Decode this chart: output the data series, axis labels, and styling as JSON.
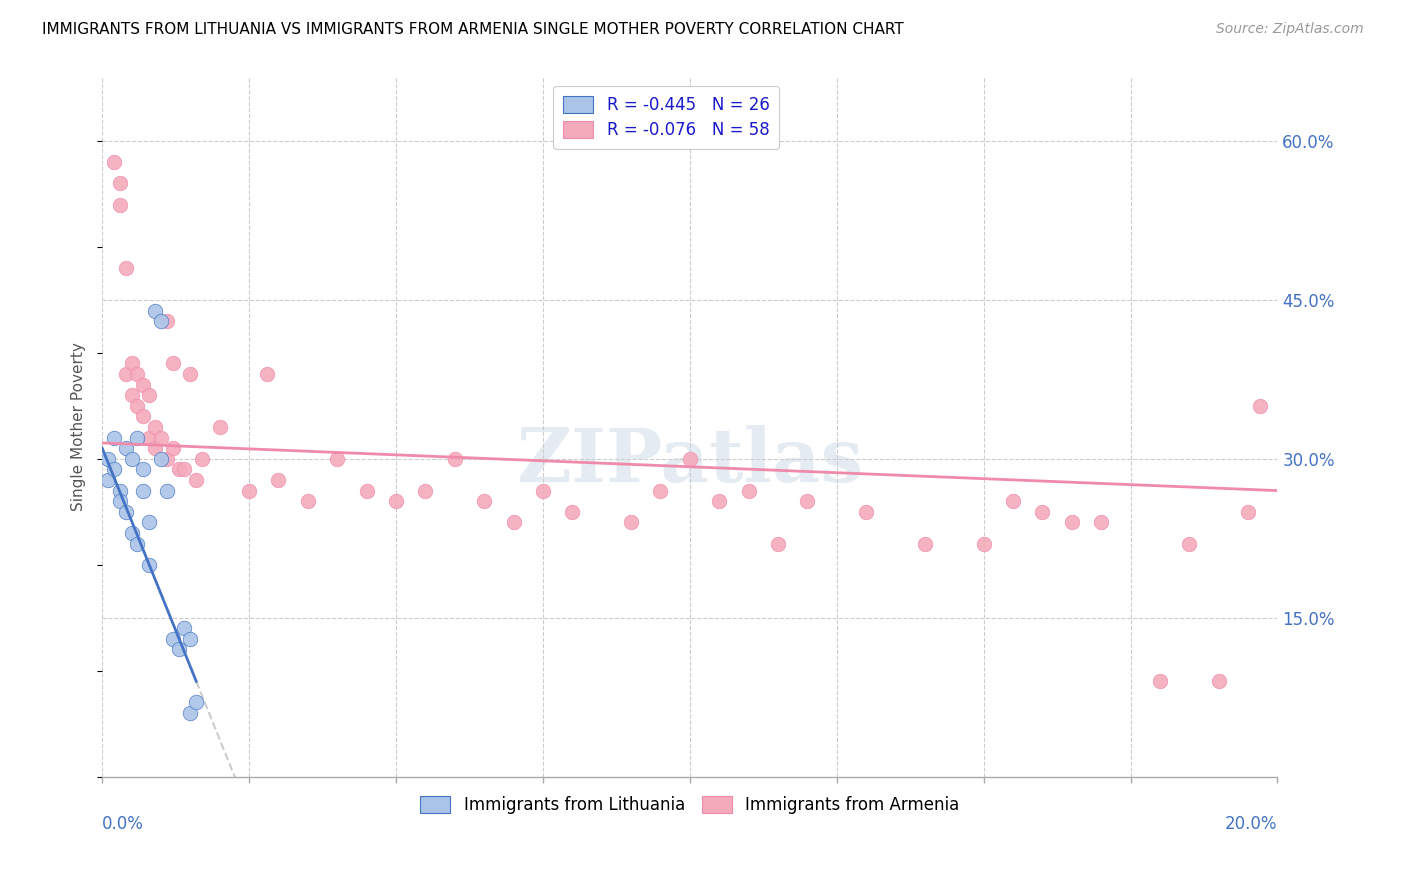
{
  "title": "IMMIGRANTS FROM LITHUANIA VS IMMIGRANTS FROM ARMENIA SINGLE MOTHER POVERTY CORRELATION CHART",
  "source": "Source: ZipAtlas.com",
  "ylabel": "Single Mother Poverty",
  "ylabel_right_vals": [
    0.6,
    0.45,
    0.3,
    0.15
  ],
  "ylabel_right_labels": [
    "60.0%",
    "45.0%",
    "30.0%",
    "15.0%"
  ],
  "xlim": [
    0.0,
    0.2
  ],
  "ylim": [
    0.0,
    0.66
  ],
  "legend_r1": "R = -0.445   N = 26",
  "legend_r2": "R = -0.076   N = 58",
  "color_lithuania": "#aac4e8",
  "color_armenia": "#f4aabb",
  "line_color_lithuania": "#4472c4",
  "line_color_armenia": "#f08aaa",
  "watermark": "ZIPatlas",
  "x_ticks": [
    0.0,
    0.025,
    0.05,
    0.075,
    0.1,
    0.125,
    0.15,
    0.175,
    0.2
  ],
  "lithuania_x": [
    0.001,
    0.001,
    0.002,
    0.002,
    0.003,
    0.003,
    0.004,
    0.004,
    0.005,
    0.005,
    0.006,
    0.006,
    0.007,
    0.007,
    0.008,
    0.008,
    0.009,
    0.01,
    0.01,
    0.011,
    0.012,
    0.013,
    0.014,
    0.015,
    0.015,
    0.016
  ],
  "lithuania_y": [
    0.28,
    0.3,
    0.29,
    0.32,
    0.27,
    0.26,
    0.31,
    0.25,
    0.3,
    0.23,
    0.32,
    0.22,
    0.29,
    0.27,
    0.24,
    0.2,
    0.44,
    0.43,
    0.3,
    0.27,
    0.13,
    0.12,
    0.14,
    0.13,
    0.06,
    0.07
  ],
  "armenia_x": [
    0.002,
    0.003,
    0.003,
    0.004,
    0.004,
    0.005,
    0.005,
    0.006,
    0.006,
    0.007,
    0.007,
    0.008,
    0.008,
    0.009,
    0.009,
    0.01,
    0.011,
    0.011,
    0.012,
    0.012,
    0.013,
    0.014,
    0.015,
    0.016,
    0.017,
    0.02,
    0.025,
    0.028,
    0.03,
    0.035,
    0.04,
    0.045,
    0.05,
    0.055,
    0.06,
    0.065,
    0.07,
    0.075,
    0.08,
    0.09,
    0.095,
    0.1,
    0.105,
    0.11,
    0.115,
    0.12,
    0.13,
    0.14,
    0.15,
    0.155,
    0.16,
    0.165,
    0.17,
    0.18,
    0.185,
    0.19,
    0.195,
    0.197
  ],
  "armenia_y": [
    0.58,
    0.56,
    0.54,
    0.38,
    0.48,
    0.36,
    0.39,
    0.35,
    0.38,
    0.34,
    0.37,
    0.36,
    0.32,
    0.33,
    0.31,
    0.32,
    0.43,
    0.3,
    0.39,
    0.31,
    0.29,
    0.29,
    0.38,
    0.28,
    0.3,
    0.33,
    0.27,
    0.38,
    0.28,
    0.26,
    0.3,
    0.27,
    0.26,
    0.27,
    0.3,
    0.26,
    0.24,
    0.27,
    0.25,
    0.24,
    0.27,
    0.3,
    0.26,
    0.27,
    0.22,
    0.26,
    0.25,
    0.22,
    0.22,
    0.26,
    0.25,
    0.24,
    0.24,
    0.09,
    0.22,
    0.09,
    0.25,
    0.35
  ]
}
